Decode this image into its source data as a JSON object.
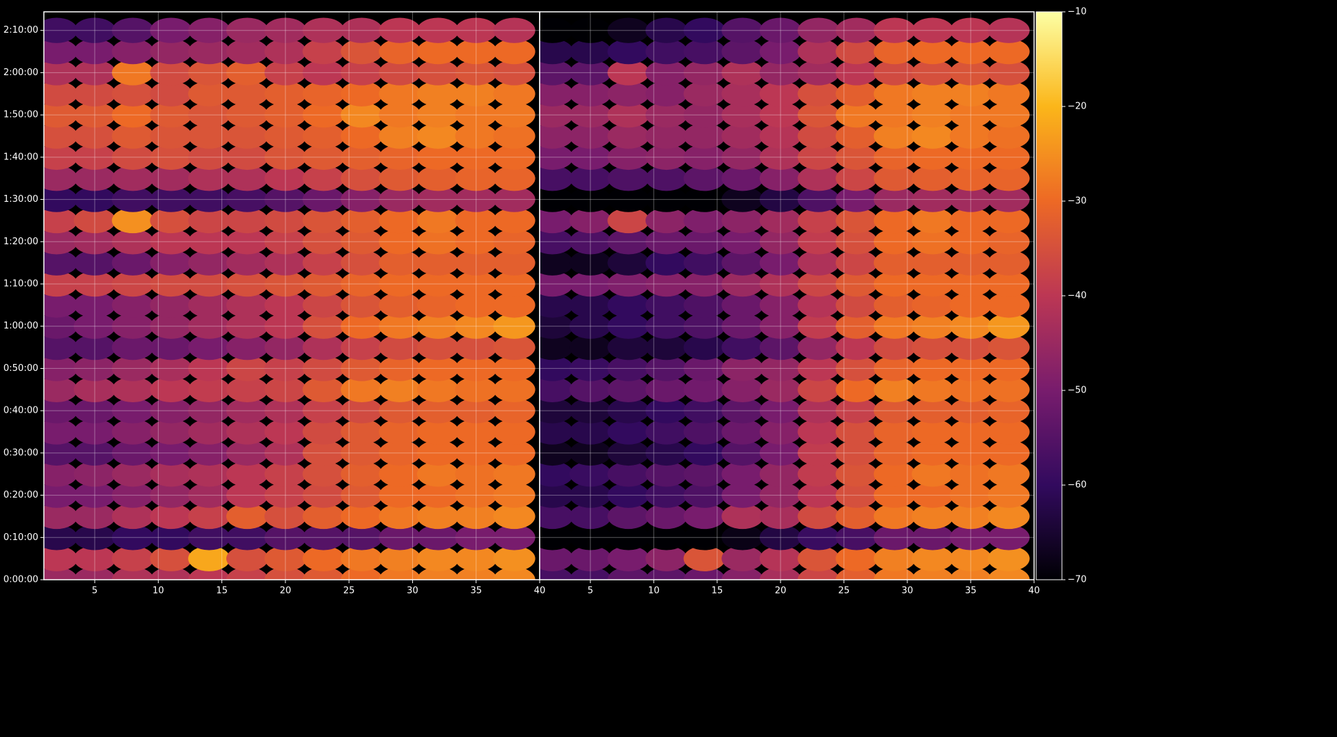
{
  "chart_data": [
    {
      "type": "heatmap",
      "x": [
        2,
        5,
        8,
        11,
        14,
        17,
        20,
        23,
        26,
        29,
        32,
        35,
        38
      ],
      "y": [
        0,
        300,
        600,
        900,
        1200,
        1500,
        1800,
        2100,
        2400,
        2700,
        3000,
        3300,
        3600,
        3900,
        4200,
        4500,
        4800,
        5100,
        5400,
        5700,
        6000,
        6300,
        6600,
        6900,
        7200,
        7500,
        7800
      ],
      "values": [
        [
          -45,
          -45,
          -42,
          -42,
          -40,
          -38,
          -35,
          -33,
          -30,
          -28,
          -27,
          -27,
          -26
        ],
        [
          -40,
          -40,
          -38,
          -35,
          -22,
          -35,
          -33,
          -30,
          -28,
          -27,
          -26,
          -26,
          -25
        ],
        [
          -62,
          -62,
          -60,
          -60,
          -58,
          -58,
          -55,
          -55,
          -55,
          -52,
          -52,
          -50,
          -50
        ],
        [
          -45,
          -45,
          -42,
          -40,
          -38,
          -32,
          -35,
          -32,
          -30,
          -28,
          -27,
          -27,
          -26
        ],
        [
          -50,
          -50,
          -48,
          -46,
          -44,
          -40,
          -38,
          -36,
          -33,
          -30,
          -30,
          -29,
          -28
        ],
        [
          -48,
          -47,
          -45,
          -43,
          -42,
          -40,
          -38,
          -35,
          -32,
          -30,
          -28,
          -29,
          -28
        ],
        [
          -55,
          -55,
          -52,
          -50,
          -48,
          -45,
          -42,
          -35,
          -33,
          -31,
          -30,
          -30,
          -30
        ],
        [
          -50,
          -50,
          -48,
          -46,
          -44,
          -42,
          -40,
          -36,
          -33,
          -31,
          -30,
          -30,
          -30
        ],
        [
          -52,
          -52,
          -50,
          -48,
          -46,
          -44,
          -42,
          -38,
          -36,
          -33,
          -32,
          -32,
          -31
        ],
        [
          -45,
          -43,
          -42,
          -40,
          -39,
          -38,
          -37,
          -33,
          -28,
          -27,
          -28,
          -29,
          -29
        ],
        [
          -48,
          -47,
          -45,
          -43,
          -40,
          -37,
          -38,
          -36,
          -33,
          -31,
          -30,
          -30,
          -30
        ],
        [
          -55,
          -55,
          -52,
          -52,
          -50,
          -48,
          -46,
          -42,
          -38,
          -36,
          -35,
          -35,
          -34
        ],
        [
          -52,
          -50,
          -48,
          -46,
          -44,
          -42,
          -40,
          -35,
          -30,
          -28,
          -27,
          -26,
          -24
        ],
        [
          -50,
          -50,
          -48,
          -46,
          -44,
          -42,
          -40,
          -37,
          -34,
          -32,
          -31,
          -30,
          -30
        ],
        [
          -38,
          -38,
          -37,
          -36,
          -36,
          -35,
          -34,
          -33,
          -31,
          -30,
          -30,
          -30,
          -30
        ],
        [
          -55,
          -55,
          -52,
          -48,
          -46,
          -44,
          -42,
          -38,
          -35,
          -32,
          -32,
          -32,
          -32
        ],
        [
          -45,
          -44,
          -42,
          -40,
          -40,
          -40,
          -38,
          -35,
          -33,
          -30,
          -29,
          -30,
          -31
        ],
        [
          -38,
          -36,
          -25,
          -35,
          -37,
          -37,
          -36,
          -34,
          -32,
          -30,
          -28,
          -30,
          -30
        ],
        [
          -60,
          -60,
          -58,
          -58,
          -58,
          -57,
          -55,
          -52,
          -48,
          -45,
          -44,
          -44,
          -44
        ],
        [
          -45,
          -45,
          -44,
          -44,
          -42,
          -42,
          -40,
          -38,
          -35,
          -33,
          -32,
          -31,
          -31
        ],
        [
          -38,
          -38,
          -36,
          -35,
          -36,
          -36,
          -34,
          -33,
          -32,
          -31,
          -30,
          -30,
          -30
        ],
        [
          -35,
          -35,
          -33,
          -34,
          -34,
          -34,
          -33,
          -32,
          -30,
          -27,
          -26,
          -28,
          -29
        ],
        [
          -33,
          -33,
          -30,
          -33,
          -34,
          -33,
          -32,
          -30,
          -26,
          -28,
          -27,
          -28,
          -28
        ],
        [
          -36,
          -36,
          -35,
          -36,
          -33,
          -33,
          -32,
          -31,
          -30,
          -28,
          -27,
          -27,
          -28
        ],
        [
          -42,
          -42,
          -28,
          -36,
          -34,
          -32,
          -38,
          -40,
          -38,
          -36,
          -35,
          -34,
          -35
        ],
        [
          -50,
          -50,
          -48,
          -46,
          -45,
          -44,
          -42,
          -38,
          -34,
          -31,
          -30,
          -30,
          -30
        ],
        [
          -58,
          -58,
          -55,
          -50,
          -48,
          -45,
          -44,
          -42,
          -42,
          -40,
          -40,
          -40,
          -41
        ]
      ],
      "xlim": [
        1,
        40
      ],
      "ylim": [
        0,
        8064
      ],
      "xticks": [
        5,
        10,
        15,
        20,
        25,
        30,
        35,
        40
      ],
      "yticks": [
        {
          "value": 0,
          "label": "0:00:00"
        },
        {
          "value": 600,
          "label": "0:10:00"
        },
        {
          "value": 1200,
          "label": "0:20:00"
        },
        {
          "value": 1800,
          "label": "0:30:00"
        },
        {
          "value": 2400,
          "label": "0:40:00"
        },
        {
          "value": 3000,
          "label": "0:50:00"
        },
        {
          "value": 3600,
          "label": "1:00:00"
        },
        {
          "value": 4200,
          "label": "1:10:00"
        },
        {
          "value": 4800,
          "label": "1:20:00"
        },
        {
          "value": 5400,
          "label": "1:30:00"
        },
        {
          "value": 6000,
          "label": "1:40:00"
        },
        {
          "value": 6600,
          "label": "1:50:00"
        },
        {
          "value": 7200,
          "label": "2:00:00"
        },
        {
          "value": 7800,
          "label": "2:10:00"
        }
      ],
      "grid": true
    },
    {
      "type": "heatmap",
      "x": [
        2,
        5,
        8,
        11,
        14,
        17,
        20,
        23,
        26,
        29,
        32,
        35,
        38
      ],
      "y": [
        0,
        300,
        600,
        900,
        1200,
        1500,
        1800,
        2100,
        2400,
        2700,
        3000,
        3300,
        3600,
        3900,
        4200,
        4500,
        4800,
        5100,
        5400,
        5700,
        6000,
        6300,
        6600,
        6900,
        7200,
        7500,
        7800
      ],
      "values": [
        [
          -57,
          -57,
          -54,
          -54,
          -52,
          -48,
          -43,
          -37,
          -32,
          -28,
          -27,
          -27,
          -26
        ],
        [
          -52,
          -52,
          -50,
          -47,
          -34,
          -45,
          -41,
          -34,
          -30,
          -27,
          -26,
          -26,
          -25
        ],
        [
          -70,
          -70,
          -70,
          -70,
          -70,
          -68,
          -63,
          -59,
          -57,
          -52,
          -52,
          -50,
          -50
        ],
        [
          -57,
          -57,
          -54,
          -52,
          -50,
          -42,
          -43,
          -36,
          -32,
          -28,
          -27,
          -27,
          -26
        ],
        [
          -62,
          -62,
          -60,
          -58,
          -56,
          -50,
          -46,
          -40,
          -35,
          -30,
          -30,
          -29,
          -28
        ],
        [
          -60,
          -59,
          -57,
          -55,
          -54,
          -50,
          -46,
          -39,
          -34,
          -30,
          -28,
          -29,
          -28
        ],
        [
          -67,
          -67,
          -64,
          -62,
          -60,
          -55,
          -50,
          -39,
          -35,
          -31,
          -30,
          -30,
          -30
        ],
        [
          -62,
          -62,
          -60,
          -58,
          -56,
          -52,
          -48,
          -40,
          -35,
          -31,
          -30,
          -30,
          -30
        ],
        [
          -64,
          -64,
          -62,
          -60,
          -58,
          -54,
          -50,
          -42,
          -38,
          -33,
          -32,
          -32,
          -31
        ],
        [
          -57,
          -55,
          -54,
          -52,
          -51,
          -48,
          -45,
          -37,
          -30,
          -27,
          -28,
          -29,
          -29
        ],
        [
          -60,
          -59,
          -57,
          -55,
          -52,
          -47,
          -46,
          -40,
          -35,
          -31,
          -30,
          -30,
          -30
        ],
        [
          -67,
          -67,
          -64,
          -64,
          -62,
          -58,
          -54,
          -46,
          -40,
          -36,
          -35,
          -35,
          -34
        ],
        [
          -64,
          -62,
          -60,
          -58,
          -56,
          -52,
          -48,
          -39,
          -32,
          -28,
          -27,
          -26,
          -24
        ],
        [
          -62,
          -62,
          -60,
          -58,
          -56,
          -52,
          -48,
          -41,
          -36,
          -32,
          -31,
          -30,
          -30
        ],
        [
          -50,
          -50,
          -49,
          -48,
          -48,
          -45,
          -42,
          -37,
          -33,
          -30,
          -30,
          -30,
          -30
        ],
        [
          -67,
          -67,
          -64,
          -60,
          -58,
          -54,
          -50,
          -42,
          -37,
          -32,
          -32,
          -32,
          -32
        ],
        [
          -57,
          -56,
          -54,
          -52,
          -52,
          -50,
          -46,
          -39,
          -35,
          -30,
          -29,
          -30,
          -31
        ],
        [
          -50,
          -48,
          -37,
          -47,
          -49,
          -47,
          -44,
          -38,
          -34,
          -30,
          -28,
          -30,
          -30
        ],
        [
          -70,
          -70,
          -70,
          -70,
          -70,
          -67,
          -63,
          -56,
          -50,
          -45,
          -44,
          -44,
          -44
        ],
        [
          -57,
          -57,
          -56,
          -56,
          -54,
          -52,
          -48,
          -42,
          -37,
          -33,
          -32,
          -31,
          -31
        ],
        [
          -50,
          -50,
          -48,
          -47,
          -48,
          -46,
          -42,
          -37,
          -34,
          -31,
          -30,
          -30,
          -30
        ],
        [
          -47,
          -47,
          -45,
          -46,
          -46,
          -44,
          -41,
          -36,
          -32,
          -27,
          -26,
          -28,
          -29
        ],
        [
          -45,
          -45,
          -42,
          -45,
          -46,
          -43,
          -40,
          -34,
          -28,
          -28,
          -27,
          -28,
          -28
        ],
        [
          -48,
          -48,
          -47,
          -48,
          -45,
          -43,
          -40,
          -35,
          -32,
          -28,
          -27,
          -27,
          -28
        ],
        [
          -54,
          -54,
          -40,
          -48,
          -46,
          -42,
          -46,
          -44,
          -40,
          -36,
          -35,
          -34,
          -35
        ],
        [
          -62,
          -62,
          -60,
          -58,
          -57,
          -54,
          -50,
          -42,
          -36,
          -31,
          -30,
          -30,
          -30
        ],
        [
          -70,
          -70,
          -67,
          -62,
          -60,
          -55,
          -52,
          -46,
          -44,
          -40,
          -40,
          -40,
          -41
        ]
      ],
      "xlim": [
        1,
        40
      ],
      "ylim": [
        0,
        8064
      ],
      "xticks": [
        5,
        10,
        15,
        20,
        25,
        30,
        35,
        40
      ],
      "grid": true
    }
  ],
  "colorbar": {
    "lim": [
      -70,
      -10
    ],
    "ticks": [
      {
        "value": -70,
        "label": "−70"
      },
      {
        "value": -60,
        "label": "−60"
      },
      {
        "value": -50,
        "label": "−50"
      },
      {
        "value": -40,
        "label": "−40"
      },
      {
        "value": -30,
        "label": "−30"
      },
      {
        "value": -20,
        "label": "−20"
      },
      {
        "value": -10,
        "label": "−10"
      }
    ],
    "colors": [
      "#000004",
      "#320a5e",
      "#781c6d",
      "#bc3754",
      "#ed6925",
      "#fbb61a",
      "#fcffa4"
    ]
  }
}
